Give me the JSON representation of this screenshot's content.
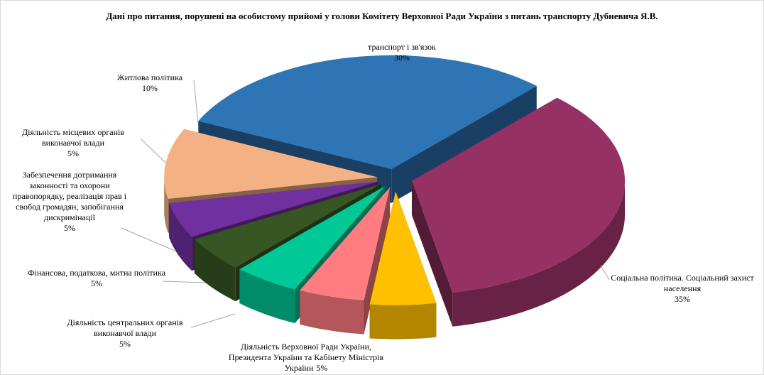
{
  "chart_data": {
    "type": "pie3d",
    "title": "Дані про питання, порушені на особистому прийомі у голови Комітету Верховної Ради України з питань транспорту  Дубневича Я.В.",
    "categories": [
      "транспорт і зв'язок",
      "Соціальна політика.  Соціальний захист  населення",
      "Діяльність  Верховної Ради України, Президента  України та Кабінету Міністрів  України",
      "Діяльність  центральних  органів виконавчої влади",
      "Фінансова, податкова, митна політика",
      "Забезпечення дотримання законності та охорони правопорядку, реалізація прав і свобод громадян, запобігання дискримінації",
      "Діяльність  місцевих  органів виконавчої влади",
      "Житлова  політика"
    ],
    "values": [
      30,
      35,
      5,
      5,
      5,
      5,
      5,
      10
    ],
    "value_labels": [
      "30%",
      "35%",
      "5%",
      "5%",
      "5%",
      "5%",
      "5%",
      "10%"
    ],
    "colors": [
      "#2e75b6",
      "#953163",
      "#ffc000",
      "#ff7c80",
      "#00c896",
      "#375623",
      "#7030a0",
      "#f4b183"
    ]
  }
}
